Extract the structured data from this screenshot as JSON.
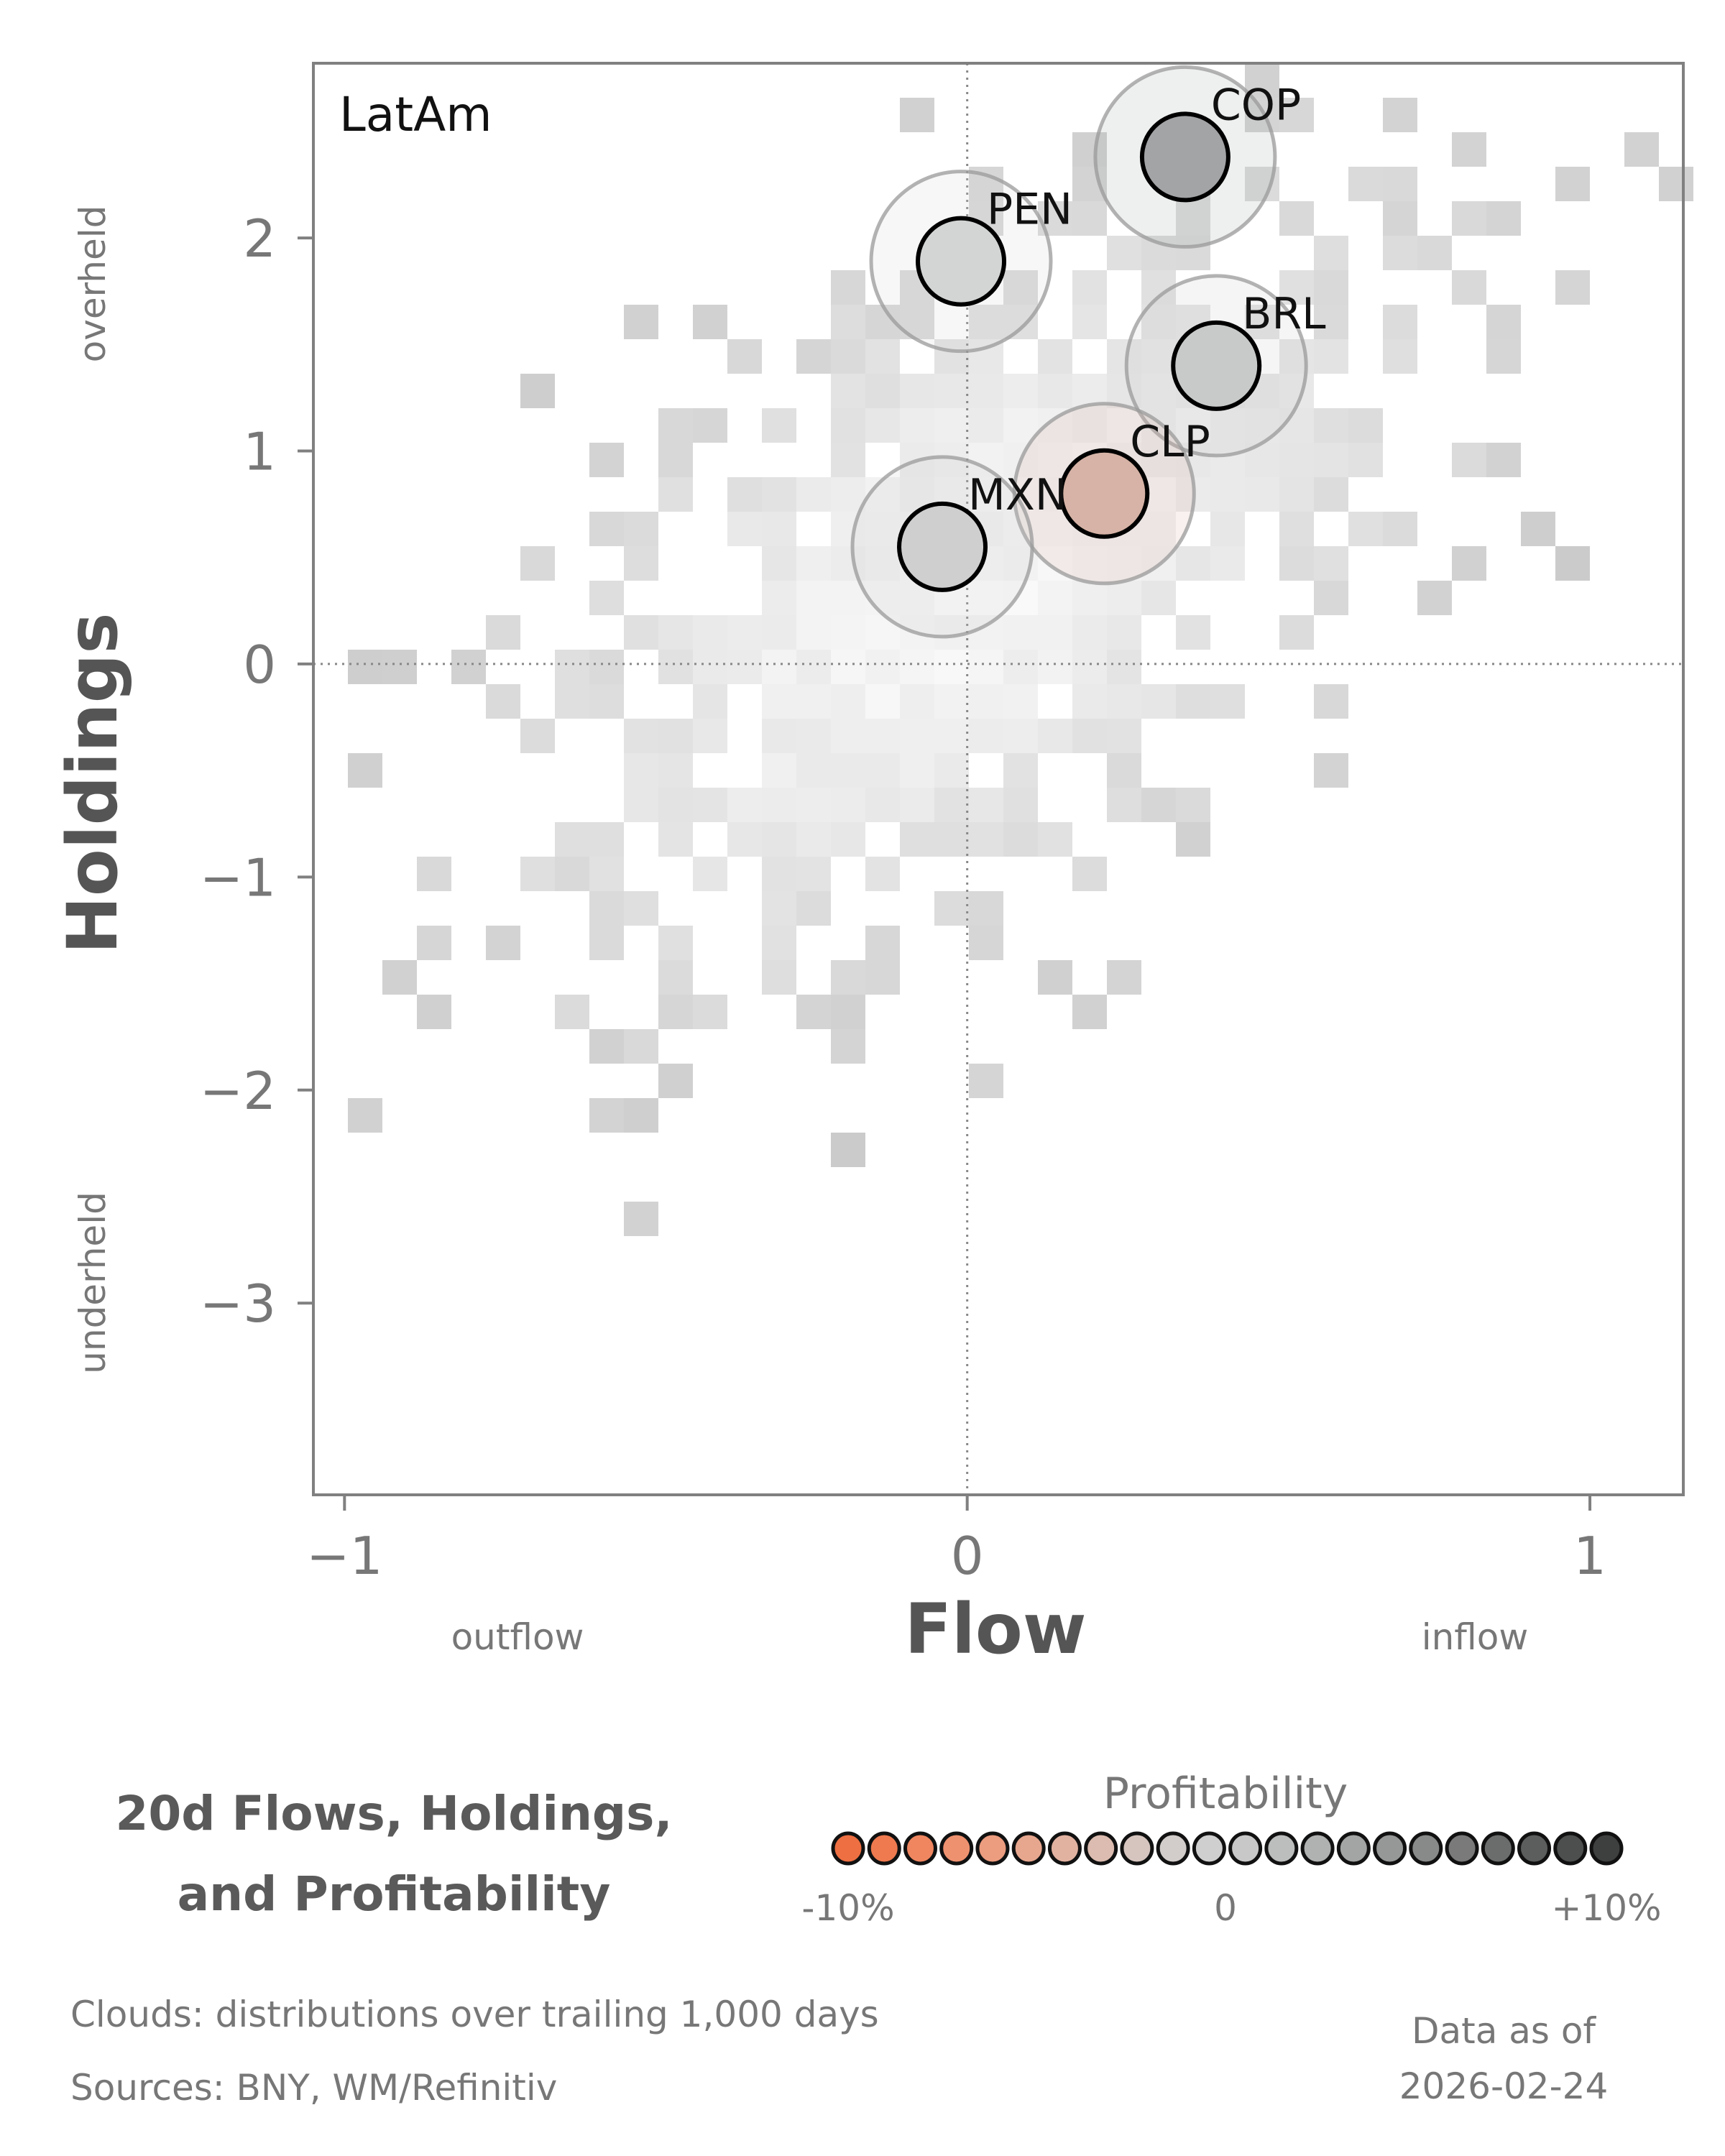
{
  "chart_data": {
    "type": "scatter",
    "panel_label": "LatAm",
    "xlabel": "Flow",
    "ylabel": "Holdings",
    "x_left_label": "outflow",
    "x_right_label": "inflow",
    "y_top_label": "overheld",
    "y_bottom_label": "underheld",
    "xlim": [
      -1.05,
      1.15
    ],
    "ylim": [
      -3.9,
      2.82
    ],
    "x_ticks": [
      -1,
      0,
      1
    ],
    "x_tick_labels": [
      "−1",
      "0",
      "1"
    ],
    "y_ticks": [
      -3,
      -2,
      -1,
      0,
      1,
      2
    ],
    "y_tick_labels": [
      "−3",
      "−2",
      "−1",
      "0",
      "1",
      "2"
    ],
    "reference_lines": {
      "x": 0,
      "y": 0
    },
    "background": "2D histogram cloud (grey) of flow/holdings distribution",
    "points": [
      {
        "label": "COP",
        "x": 0.35,
        "y": 2.38,
        "color": "#a3a4a6"
      },
      {
        "label": "PEN",
        "x": -0.01,
        "y": 1.89,
        "color": "#d3d5d4"
      },
      {
        "label": "BRL",
        "x": 0.4,
        "y": 1.4,
        "color": "#c8cac9"
      },
      {
        "label": "CLP",
        "x": 0.22,
        "y": 0.8,
        "color": "#d6b3a6"
      },
      {
        "label": "MXN",
        "x": -0.04,
        "y": 0.55,
        "color": "#cfcfcf"
      }
    ]
  },
  "title_lines": [
    "20d Flows, Holdings,",
    "and Profitability"
  ],
  "legend": {
    "title": "Profitability",
    "min_label": "-10%",
    "mid_label": "0",
    "max_label": "+10%",
    "colors": [
      "#ee6f42",
      "#ef7a4f",
      "#ef8660",
      "#ee916f",
      "#ec9c7f",
      "#e7a78f",
      "#e2b2a1",
      "#dcbcb0",
      "#d6c5bf",
      "#d2cdcb",
      "#cfcfcf",
      "#c8c8c8",
      "#bcbdbd",
      "#b0b1b1",
      "#a3a4a4",
      "#969797",
      "#888989",
      "#7a7a7b",
      "#6b6c6c",
      "#5c5d5d",
      "#4d4e4e",
      "#3e3f3f"
    ]
  },
  "notes": {
    "clouds": "Clouds:  distributions over trailing 1,000 days",
    "sources": "Sources:  BNY, WM/Refinitiv",
    "data_as_of_label": "Data as of",
    "data_as_of_date": "2026-02-24"
  }
}
